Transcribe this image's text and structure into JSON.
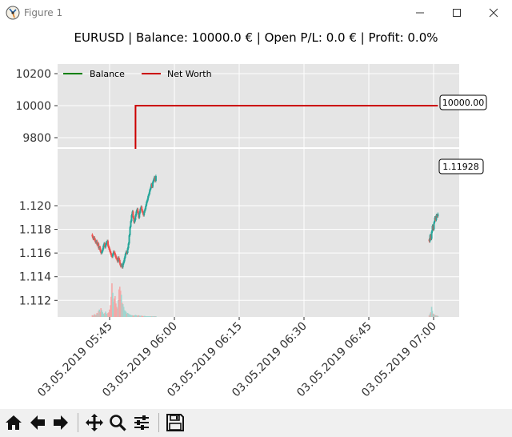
{
  "window": {
    "title": "Figure 1",
    "icons": [
      "figure-app-icon",
      "minimize-icon",
      "maximize-icon",
      "close-icon"
    ]
  },
  "figure": {
    "title": "EURUSD | Balance: 10000.0 € | Open P/L: 0.0 € | Profit: 0.0%"
  },
  "chart_data": [
    {
      "type": "line",
      "panel": "net-worth",
      "ylim": [
        9740,
        10260
      ],
      "yticks": [
        "9800",
        "10000",
        "10200"
      ],
      "grid": true,
      "legend": {
        "placement": "top-left",
        "entries": [
          "Balance",
          "Net Worth"
        ]
      },
      "series": [
        {
          "name": "Balance",
          "color": "#008000",
          "x": [],
          "y": []
        },
        {
          "name": "Net Worth",
          "color": "#cc0000",
          "x": [
            "03.05.2019 05:51",
            "03.05.2019 05:51",
            "03.05.2019 07:01"
          ],
          "y": [
            9730,
            10000,
            10000
          ]
        }
      ],
      "annotation": {
        "label": "10000.00",
        "x": "03.05.2019 07:01",
        "y": 10000
      }
    },
    {
      "type": "candlestick",
      "panel": "price",
      "ylim": [
        1.1106,
        1.1248
      ],
      "yticks": [
        "1.112",
        "1.114",
        "1.116",
        "1.118",
        "1.120"
      ],
      "xticks": [
        "03.05.2019 05:45",
        "03.05.2019 06:00",
        "03.05.2019 06:15",
        "03.05.2019 06:30",
        "03.05.2019 06:45",
        "03.05.2019 07:00"
      ],
      "grid": true,
      "colors": {
        "up": "#26a69a",
        "down": "#ef5350",
        "volume_up": "#9fd6d0",
        "volume_down": "#f4a7a6"
      },
      "segments": [
        {
          "start": "03.05.2019 05:41",
          "step_minutes": 0.1818,
          "close": [
            1.1174,
            1.1172,
            1.1173,
            1.1171,
            1.1169,
            1.117,
            1.1167,
            1.1168,
            1.1164,
            1.1165,
            1.1162,
            1.116,
            1.1161,
            1.1163,
            1.1166,
            1.1168,
            1.1165,
            1.1167,
            1.1169,
            1.117,
            1.1166,
            1.1164,
            1.1162,
            1.116,
            1.1158,
            1.1157,
            1.1159,
            1.1161,
            1.116,
            1.1158,
            1.1156,
            1.1155,
            1.1153,
            1.1156,
            1.1154,
            1.1151,
            1.1149,
            1.115,
            1.1148,
            1.1151,
            1.1153,
            1.1156,
            1.1159,
            1.1161,
            1.116,
            1.1164,
            1.1168,
            1.1175,
            1.1182,
            1.1187,
            1.1192,
            1.1195,
            1.119,
            1.1186,
            1.1188,
            1.1192,
            1.1195,
            1.1197,
            1.1194,
            1.119,
            1.1194,
            1.1197,
            1.1199,
            1.1196,
            1.1194,
            1.1192,
            1.1195,
            1.1197,
            1.12,
            1.1203,
            1.1205,
            1.1208,
            1.121,
            1.1213,
            1.1215,
            1.1218,
            1.1216,
            1.122,
            1.1222,
            1.1224,
            1.1221,
            1.1225
          ],
          "volume": [
            0.05,
            0.04,
            0.06,
            0.08,
            0.05,
            0.07,
            0.12,
            0.09,
            0.18,
            0.22,
            0.15,
            0.26,
            0.2,
            0.14,
            0.1,
            0.08,
            0.12,
            0.16,
            0.1,
            0.08,
            0.12,
            0.14,
            0.22,
            0.35,
            0.6,
            1,
            0.72,
            0.45,
            0.55,
            0.62,
            0.4,
            0.3,
            0.25,
            0.5,
            0.82,
            0.9,
            0.78,
            0.66,
            0.42,
            0.38,
            0.3,
            0.2,
            0.18,
            0.15,
            0.1,
            0.12,
            0.1,
            0.08,
            0.07,
            0.06,
            0.05,
            0.05,
            0.04,
            0.04,
            0.05,
            0.06,
            0.05,
            0.04,
            0.04,
            0.05,
            0.04,
            0.03,
            0.04,
            0.03,
            0.03,
            0.02,
            0.03,
            0.03,
            0.02,
            0.02,
            0.02,
            0.02,
            0.02,
            0.02,
            0.02,
            0.02,
            0.02,
            0.02,
            0.02,
            0.02,
            0.02,
            0.02
          ]
        },
        {
          "start": "03.05.2019 06:59",
          "step_minutes": 0.1818,
          "close": [
            1.117,
            1.1175,
            1.1172,
            1.1178,
            1.1183,
            1.118,
            1.1186,
            1.119,
            1.1188,
            1.1192,
            1.1191,
            1.1193
          ],
          "volume": [
            0.05,
            0.1,
            0.14,
            0.3,
            0.18,
            0.1,
            0.08,
            0.06,
            0.05,
            0.04,
            0.04,
            0.03
          ]
        }
      ],
      "annotation": {
        "label": "1.11928",
        "x": "03.05.2019 07:01",
        "y": 1.11928
      }
    }
  ],
  "toolbar": {
    "buttons": [
      "home-icon",
      "back-icon",
      "forward-icon",
      "pan-icon",
      "zoom-icon",
      "configure-subplots-icon",
      "save-icon"
    ]
  }
}
